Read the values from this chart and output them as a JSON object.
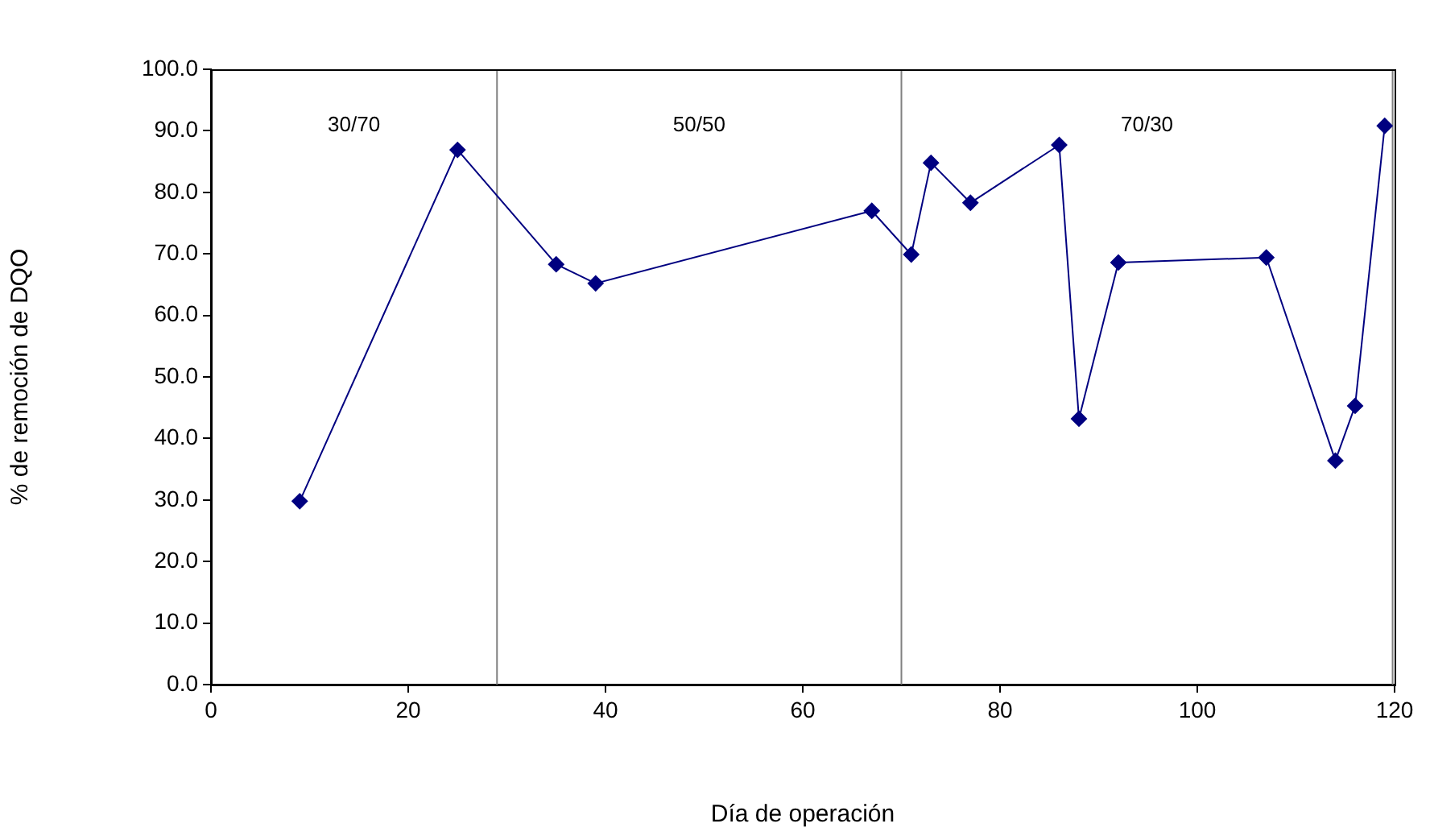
{
  "chart_data": {
    "type": "line",
    "xlabel": "Día de operación",
    "ylabel": "% de remoción de DQO",
    "x": [
      9,
      25,
      35,
      39,
      67,
      71,
      73,
      77,
      86,
      88,
      92,
      107,
      114,
      116,
      119
    ],
    "series": [
      {
        "color": "#000080",
        "values": [
          29.8,
          86.9,
          68.3,
          65.2,
          77.0,
          69.9,
          84.8,
          78.3,
          87.7,
          43.2,
          68.6,
          69.4,
          36.4,
          45.3,
          90.8
        ]
      }
    ],
    "marker": "diamond",
    "line_style": "solid",
    "grid": false,
    "legend": false,
    "xlim": [
      0,
      120
    ],
    "xticks": [
      0,
      20,
      40,
      60,
      80,
      100,
      120
    ],
    "ylim": [
      0,
      100
    ],
    "yticks": [
      {
        "value": 0,
        "label": "0.0"
      },
      {
        "value": 10,
        "label": "10.0"
      },
      {
        "value": 20,
        "label": "20.0"
      },
      {
        "value": 30,
        "label": "30.0"
      },
      {
        "value": 40,
        "label": "40.0"
      },
      {
        "value": 50,
        "label": "50.0"
      },
      {
        "value": 60,
        "label": "60.0"
      },
      {
        "value": 70,
        "label": "70.0"
      },
      {
        "value": 80,
        "label": "80.0"
      },
      {
        "value": 90,
        "label": "90.0"
      },
      {
        "value": 100,
        "label": "100.0"
      }
    ],
    "ref_lines": [
      {
        "axis": "x",
        "value": 29,
        "color": "#808080"
      },
      {
        "axis": "x",
        "value": 70,
        "color": "#808080"
      },
      {
        "axis": "x",
        "value": 119.8,
        "color": "#808080"
      }
    ],
    "annotations": [
      "30/70",
      "50/50",
      "70/30"
    ]
  }
}
